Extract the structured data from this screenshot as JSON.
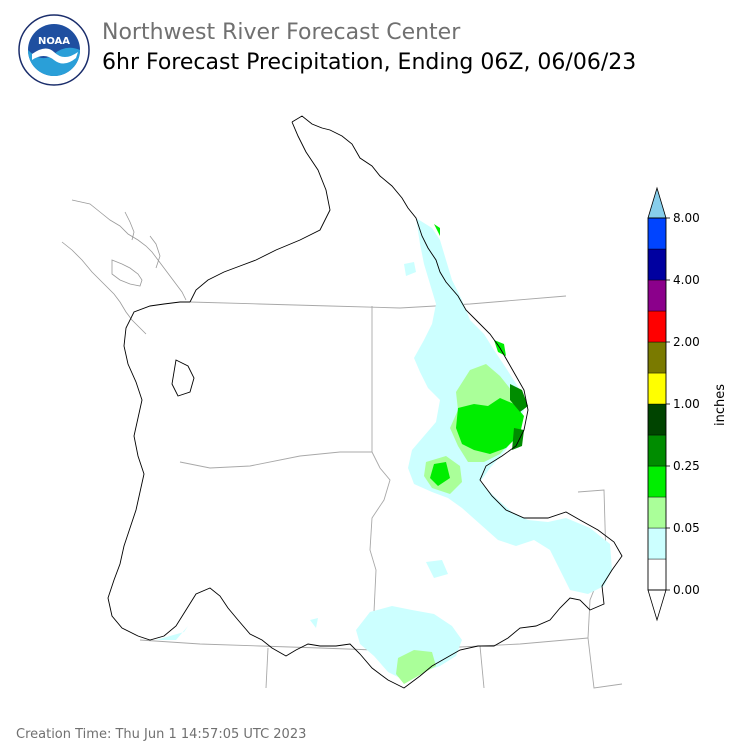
{
  "header": {
    "org_title": "Northwest River Forecast Center",
    "product_title": "6hr Forecast Precipitation, Ending 06Z, 06/06/23",
    "logo_text": "NOAA",
    "logo_ring_text": "NATIONAL OCEANIC AND ATMOSPHERIC ADMINISTRATION · U.S. DEPARTMENT OF COMMERCE"
  },
  "legend": {
    "unit_label": "inches",
    "tick_labels": [
      "0.00",
      "0.05",
      "0.25",
      "1.00",
      "2.00",
      "4.00",
      "8.00"
    ],
    "bins": [
      {
        "color": "#ffffff"
      },
      {
        "color": "#ccffff"
      },
      {
        "color": "#aaff99"
      },
      {
        "color": "#00ee00"
      },
      {
        "color": "#008c00"
      },
      {
        "color": "#004400"
      },
      {
        "color": "#ffff00"
      },
      {
        "color": "#7a7a00"
      },
      {
        "color": "#ff0000"
      },
      {
        "color": "#8b008b"
      },
      {
        "color": "#0000a0"
      },
      {
        "color": "#0044ff"
      }
    ],
    "over_color": "#87ceeb"
  },
  "footer": {
    "creation_time": "Creation Time: Thu Jun 1 14:57:05 UTC 2023"
  }
}
